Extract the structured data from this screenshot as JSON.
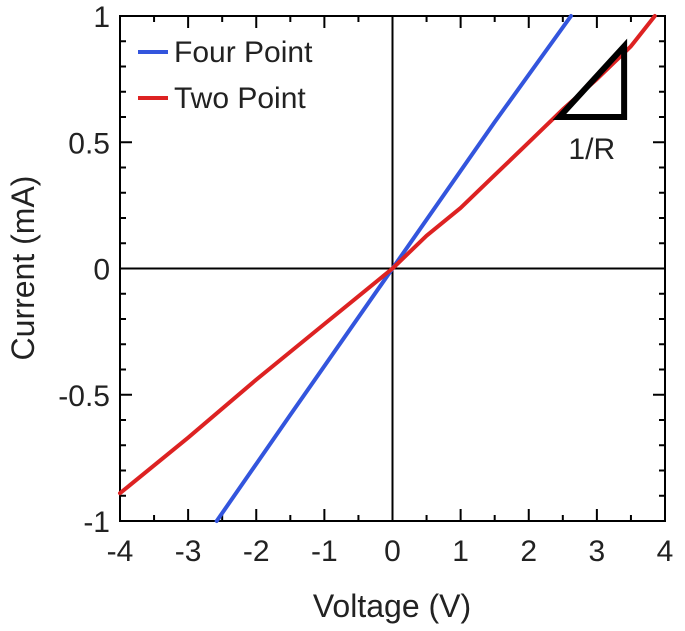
{
  "chart_data": {
    "type": "line",
    "xlabel": "Voltage (V)",
    "ylabel": "Current (mA)",
    "xlim": [
      -4,
      4
    ],
    "ylim": [
      -1,
      1
    ],
    "xticks": [
      -4,
      -3,
      -2,
      -1,
      0,
      1,
      2,
      3,
      4
    ],
    "xtick_labels": [
      "-4",
      "-3",
      "-2",
      "-1",
      "0",
      "1",
      "2",
      "3",
      "4"
    ],
    "yticks": [
      -1,
      -0.5,
      0,
      0.5,
      1
    ],
    "ytick_labels": [
      "-1",
      "-0.5",
      "0",
      "0.5",
      "1"
    ],
    "grid": false,
    "zero_lines": true,
    "legend_position": "top-left",
    "series": [
      {
        "name": "Four Point",
        "color": "#3355dd",
        "x": [
          -2.58,
          -1.5,
          0,
          1.5,
          2.62
        ],
        "y": [
          -1.0,
          -0.58,
          0,
          0.58,
          1.0
        ]
      },
      {
        "name": "Two Point",
        "color": "#dd2222",
        "x": [
          -4.0,
          -3.0,
          -2.0,
          -1.0,
          -0.5,
          0,
          0.5,
          1.0,
          1.5,
          2.0,
          2.5,
          3.0,
          3.5,
          3.85
        ],
        "y": [
          -0.89,
          -0.67,
          -0.44,
          -0.22,
          -0.11,
          0,
          0.13,
          0.24,
          0.37,
          0.5,
          0.63,
          0.75,
          0.88,
          1.0
        ]
      }
    ],
    "annotation": {
      "label": "1/R",
      "triangle": {
        "x_left": 2.45,
        "x_right": 3.4,
        "y_bottom": 0.6,
        "y_top": 0.88
      }
    }
  }
}
